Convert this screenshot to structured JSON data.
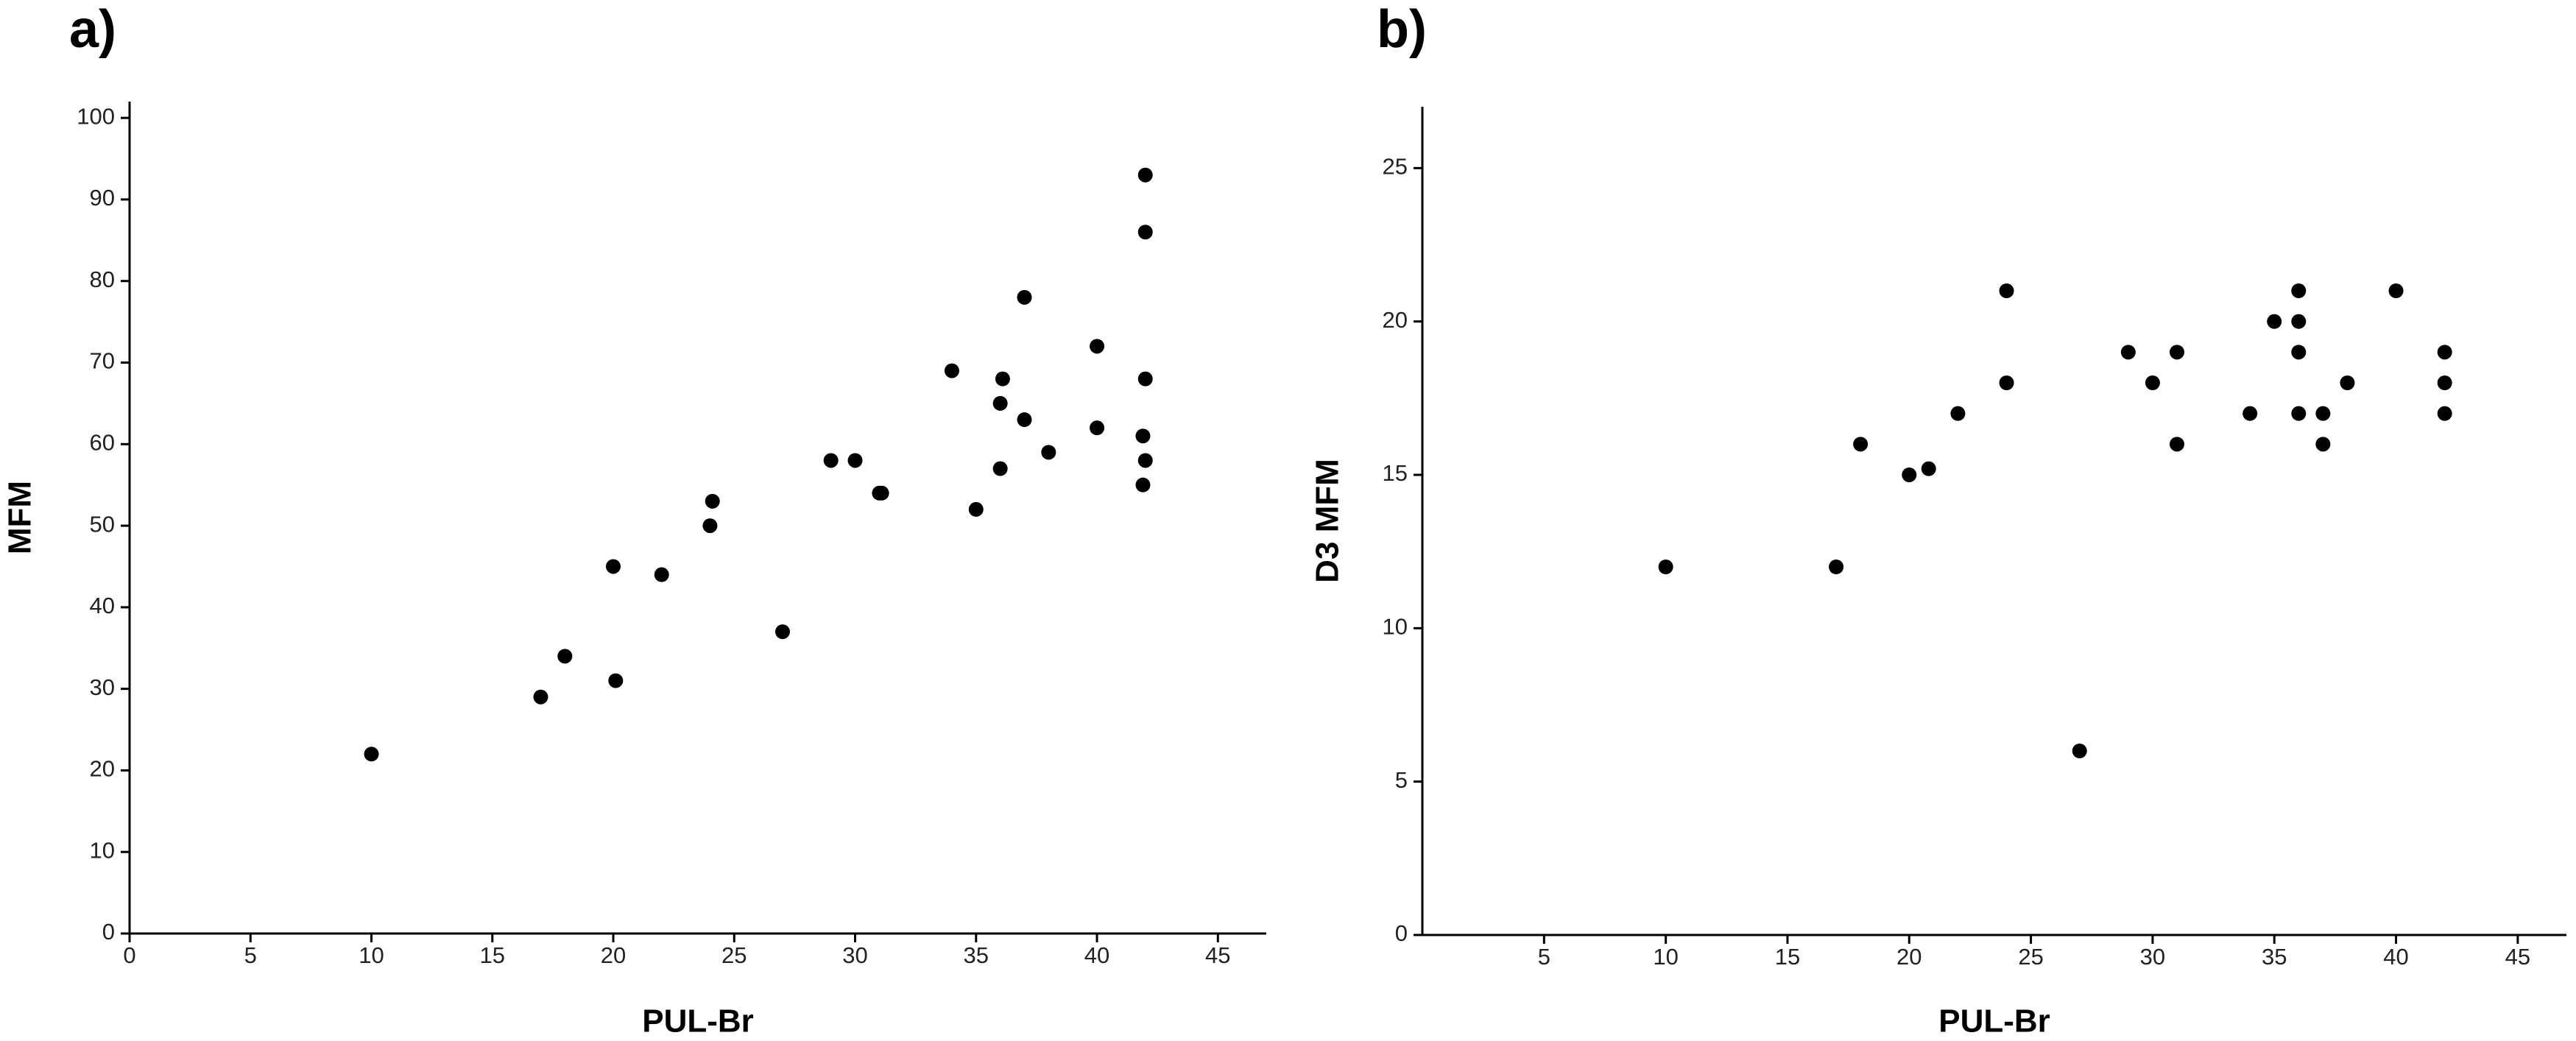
{
  "chart_data": [
    {
      "type": "scatter",
      "title": "a)",
      "x_label": "PUL-Br",
      "y_label": "MFM",
      "color": "#000000",
      "x": [
        10,
        17,
        18,
        20,
        20.1,
        22,
        24,
        24.1,
        27,
        29,
        30,
        31,
        31.1,
        34,
        35,
        36,
        36,
        36.1,
        37,
        37,
        38,
        40,
        40,
        42,
        42,
        42,
        41.9,
        42,
        41.9
      ],
      "values": [
        22,
        29,
        34,
        45,
        31,
        44,
        50,
        53,
        37,
        58,
        58,
        54,
        54,
        69,
        52,
        65,
        57,
        68,
        78,
        63,
        59,
        72,
        62,
        93,
        86,
        68,
        61,
        58,
        55
      ],
      "xlim": [
        0,
        47
      ],
      "xticks": [
        0,
        5,
        10,
        15,
        20,
        25,
        30,
        35,
        40,
        45
      ],
      "ylim": [
        0,
        102
      ],
      "yticks": [
        0,
        10,
        20,
        30,
        40,
        50,
        60,
        70,
        80,
        90,
        100
      ]
    },
    {
      "type": "scatter",
      "title": "b)",
      "x_label": "PUL-Br",
      "y_label": "D3 MFM",
      "color": "#000000",
      "x": [
        10,
        17,
        18,
        20,
        20.8,
        22,
        24,
        24,
        27,
        29,
        30,
        31,
        31,
        34,
        35,
        36,
        36,
        36,
        36,
        37,
        37,
        38,
        40,
        42,
        42,
        42
      ],
      "values": [
        12,
        12,
        16,
        15,
        15.2,
        17,
        21,
        18,
        6,
        19,
        18,
        19,
        16,
        17,
        20,
        21,
        20,
        19,
        17,
        17,
        16,
        18,
        21,
        19,
        18,
        17
      ],
      "xlim": [
        0,
        47
      ],
      "xticks": [
        5,
        10,
        15,
        20,
        25,
        30,
        35,
        40,
        45
      ],
      "ylim": [
        0,
        27
      ],
      "yticks": [
        0,
        5,
        10,
        15,
        20,
        25
      ]
    }
  ]
}
